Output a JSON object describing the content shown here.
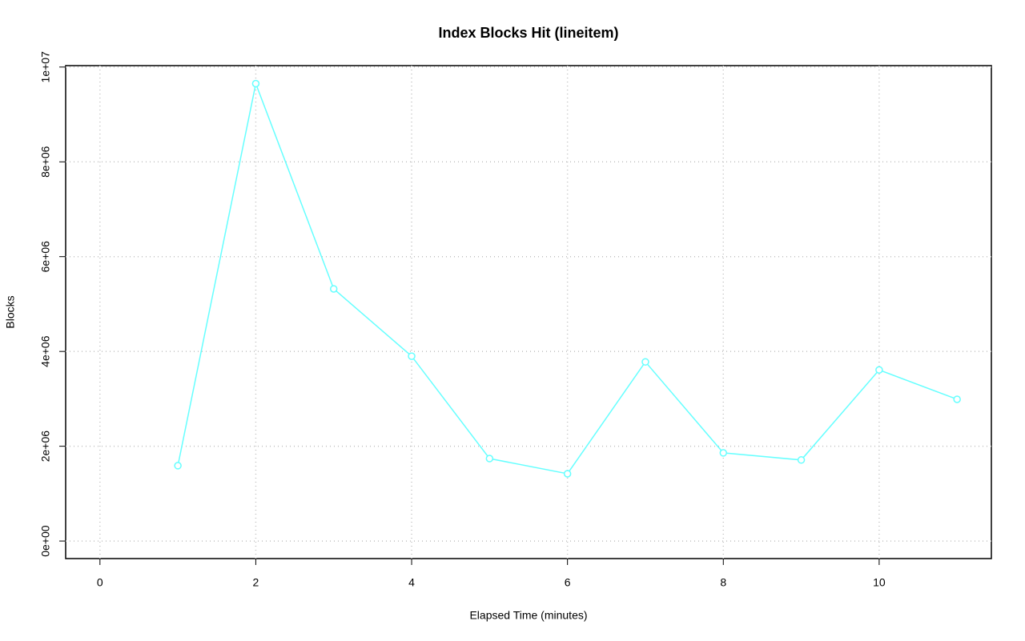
{
  "chart_data": {
    "type": "line",
    "title": "Index Blocks Hit (lineitem)",
    "x_label": "Elapsed Time (minutes)",
    "y_label": "Blocks",
    "x": [
      1,
      2,
      3,
      4,
      5,
      6,
      7,
      8,
      9,
      10,
      11
    ],
    "series": [
      {
        "color": "#66ffff",
        "values": [
          1590000,
          9650000,
          5320000,
          3900000,
          1740000,
          1420000,
          3780000,
          1860000,
          1710000,
          3610000,
          2990000
        ]
      }
    ],
    "xlim": [
      -0.44,
      11.44
    ],
    "ylim": [
      -370000,
      10030000
    ],
    "xticks": [
      0,
      2,
      4,
      6,
      8,
      10
    ],
    "yticks": [
      {
        "value": 0,
        "label": "0e+00"
      },
      {
        "value": 2000000,
        "label": "2e+06"
      },
      {
        "value": 4000000,
        "label": "4e+06"
      },
      {
        "value": 6000000,
        "label": "6e+06"
      },
      {
        "value": 8000000,
        "label": "8e+06"
      },
      {
        "value": 10000000,
        "label": "1e+07"
      }
    ],
    "grid": true
  }
}
